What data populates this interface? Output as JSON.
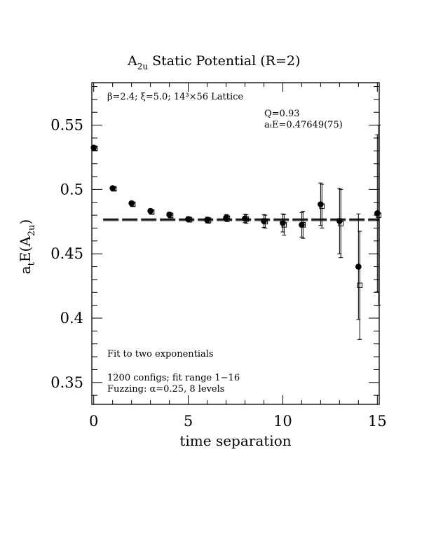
{
  "chart_data": {
    "type": "scatter",
    "title_main": "A",
    "title_sub": "2u",
    "title_rest": " Static Potential (R=2)",
    "xlabel": "time separation",
    "ylabel_a": "a",
    "ylabel_t": "t",
    "ylabel_E": "E(A",
    "ylabel_2u": "2u",
    "ylabel_close": ")",
    "xlim": [
      -0.1,
      15.1
    ],
    "ylim": [
      0.333,
      0.583
    ],
    "xticks": [
      {
        "v": 0,
        "label": "0"
      },
      {
        "v": 5,
        "label": "5"
      },
      {
        "v": 10,
        "label": "10"
      },
      {
        "v": 15,
        "label": "15"
      }
    ],
    "yticks": [
      {
        "v": 0.35,
        "label": "0.35"
      },
      {
        "v": 0.4,
        "label": "0.4"
      },
      {
        "v": 0.45,
        "label": "0.45"
      },
      {
        "v": 0.5,
        "label": "0.5"
      },
      {
        "v": 0.55,
        "label": "0.55"
      }
    ],
    "annotations": {
      "lattice": "β=2.4; ξ=5.0; 14³×56 Lattice",
      "q": "Q=0.93",
      "energy": "aₜE=0.47649(75)",
      "fit": "Fit to two exponentials",
      "configs": "1200 configs; fit range 1−16",
      "fuzzing": "Fuzzing: α=0.25, 8 levels"
    },
    "fit": {
      "value": 0.47649,
      "err": 0.00075,
      "x_range": [
        0.5,
        15.1
      ]
    },
    "series": [
      {
        "marker": "filled-circle",
        "points": [
          {
            "x": 0,
            "y": 0.5325,
            "e": 0.0015
          },
          {
            "x": 1,
            "y": 0.501,
            "e": 0.0012
          },
          {
            "x": 2,
            "y": 0.4893,
            "e": 0.0015
          },
          {
            "x": 3,
            "y": 0.4833,
            "e": 0.0015
          },
          {
            "x": 4,
            "y": 0.4805,
            "e": 0.0018
          },
          {
            "x": 5,
            "y": 0.477,
            "e": 0.0018
          },
          {
            "x": 6,
            "y": 0.4763,
            "e": 0.0022
          },
          {
            "x": 7,
            "y": 0.478,
            "e": 0.0025
          },
          {
            "x": 8,
            "y": 0.4775,
            "e": 0.0033
          },
          {
            "x": 9,
            "y": 0.4755,
            "e": 0.005
          },
          {
            "x": 10,
            "y": 0.474,
            "e": 0.007
          },
          {
            "x": 11,
            "y": 0.4725,
            "e": 0.0095
          },
          {
            "x": 12,
            "y": 0.4885,
            "e": 0.0165
          },
          {
            "x": 13,
            "y": 0.4755,
            "e": 0.0255
          },
          {
            "x": 14,
            "y": 0.44,
            "e": 0.041
          },
          {
            "x": 15,
            "y": 0.4815,
            "e": 0.061
          }
        ]
      },
      {
        "marker": "open-square",
        "points": [
          {
            "x": 0.07,
            "y": 0.532,
            "e": 0.0015
          },
          {
            "x": 1.07,
            "y": 0.5005,
            "e": 0.0012
          },
          {
            "x": 2.07,
            "y": 0.4885,
            "e": 0.0015
          },
          {
            "x": 3.07,
            "y": 0.4825,
            "e": 0.0015
          },
          {
            "x": 4.07,
            "y": 0.4798,
            "e": 0.0018
          },
          {
            "x": 5.07,
            "y": 0.4765,
            "e": 0.0018
          },
          {
            "x": 6.07,
            "y": 0.476,
            "e": 0.0022
          },
          {
            "x": 7.07,
            "y": 0.4775,
            "e": 0.0025
          },
          {
            "x": 8.07,
            "y": 0.477,
            "e": 0.0033
          },
          {
            "x": 9.07,
            "y": 0.475,
            "e": 0.005
          },
          {
            "x": 10.07,
            "y": 0.4725,
            "e": 0.008
          },
          {
            "x": 11.07,
            "y": 0.4725,
            "e": 0.0105
          },
          {
            "x": 12.07,
            "y": 0.487,
            "e": 0.017
          },
          {
            "x": 13.07,
            "y": 0.4735,
            "e": 0.0265
          },
          {
            "x": 14.07,
            "y": 0.4255,
            "e": 0.042
          },
          {
            "x": 15.07,
            "y": 0.48,
            "e": 0.07
          }
        ]
      }
    ]
  }
}
